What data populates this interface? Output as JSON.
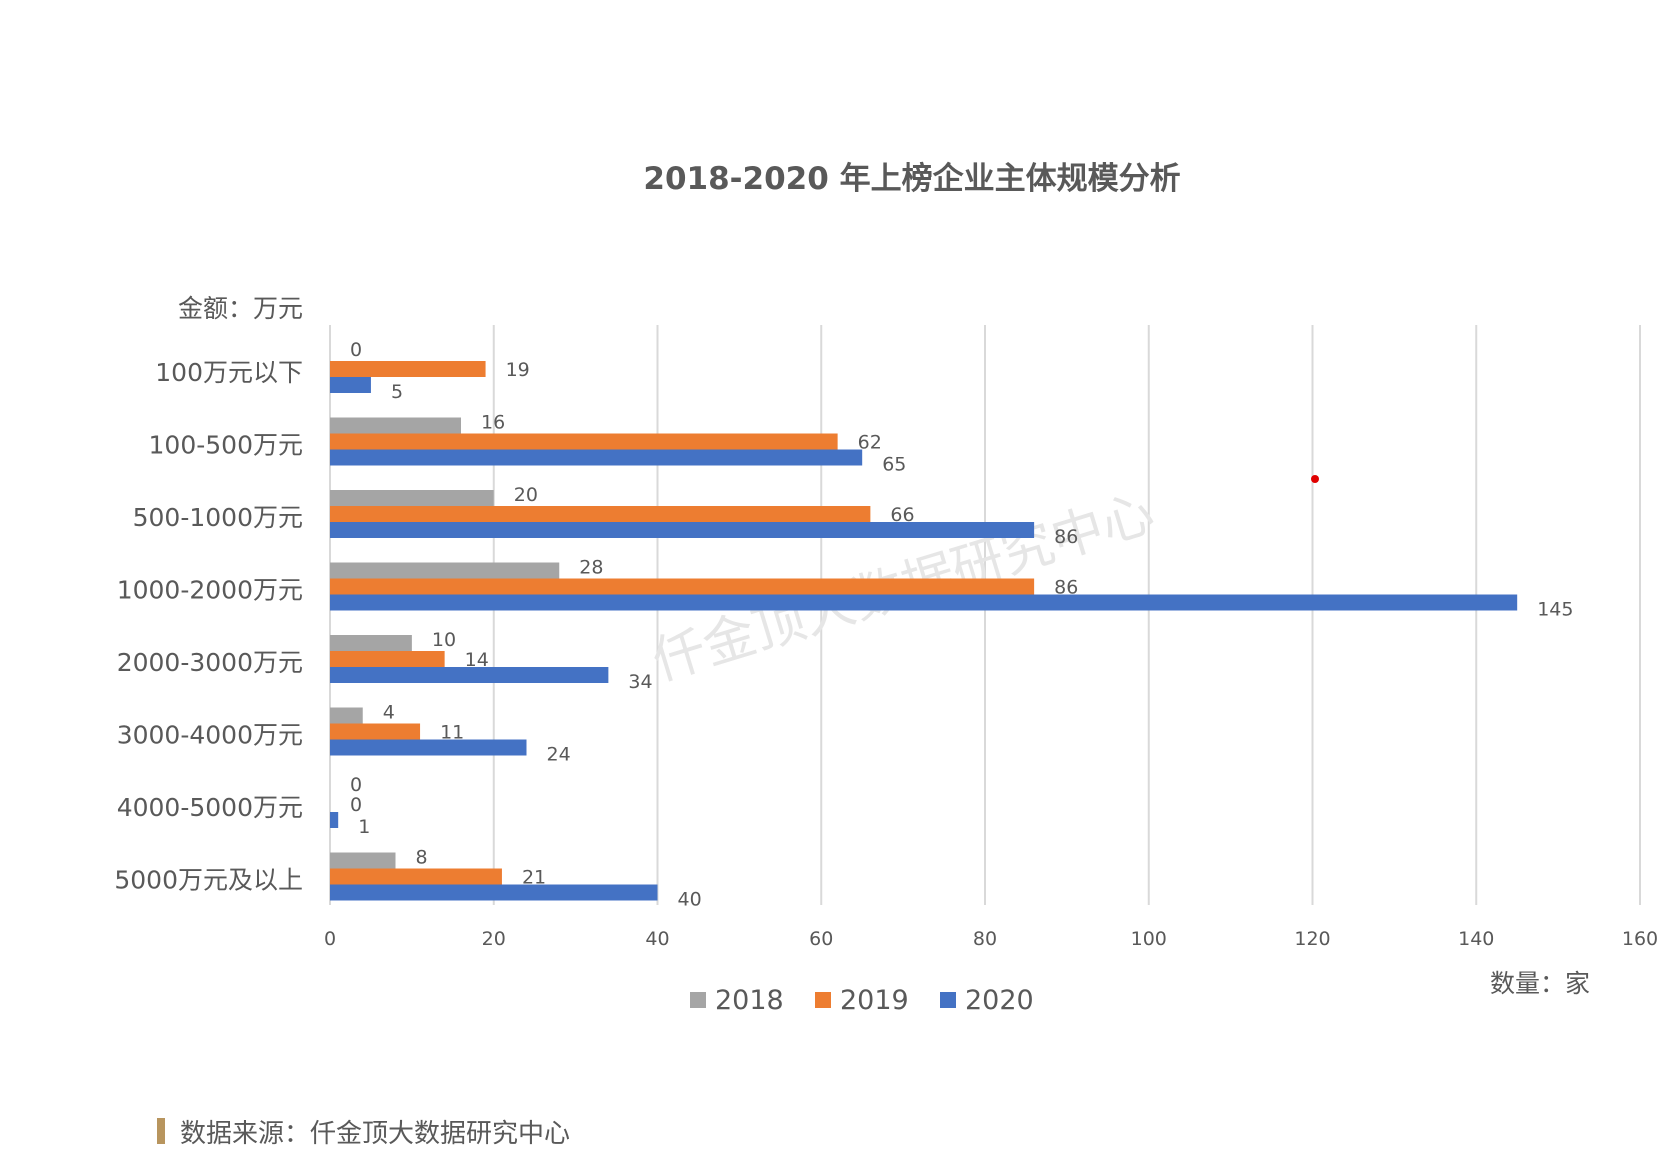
{
  "chart_data": {
    "type": "bar",
    "orientation": "horizontal",
    "title": "2018-2020 年上榜企业主体规模分析",
    "ylabel": "金额：万元",
    "xlabel": "数量：家",
    "categories": [
      "100万元以下",
      "100-500万元",
      "500-1000万元",
      "1000-2000万元",
      "2000-3000万元",
      "3000-4000万元",
      "4000-5000万元",
      "5000万元及以上"
    ],
    "series": [
      {
        "name": "2018",
        "color": "#a5a5a5",
        "values": [
          0,
          16,
          20,
          28,
          10,
          4,
          0,
          8
        ]
      },
      {
        "name": "2019",
        "color": "#ed7d31",
        "values": [
          19,
          62,
          66,
          86,
          14,
          11,
          0,
          21
        ]
      },
      {
        "name": "2020",
        "color": "#4472c4",
        "values": [
          5,
          65,
          86,
          145,
          34,
          24,
          1,
          40
        ]
      }
    ],
    "xlim": [
      0,
      160
    ],
    "xticks": [
      0,
      20,
      40,
      60,
      80,
      100,
      120,
      140,
      160
    ],
    "grid": true,
    "legend_position": "bottom"
  },
  "watermark": "仟金顶大数据研究中心",
  "source": "数据来源：仟金顶大数据研究中心",
  "source_marker_color": "#b8955e",
  "gridline_color": "#d9d9d9"
}
